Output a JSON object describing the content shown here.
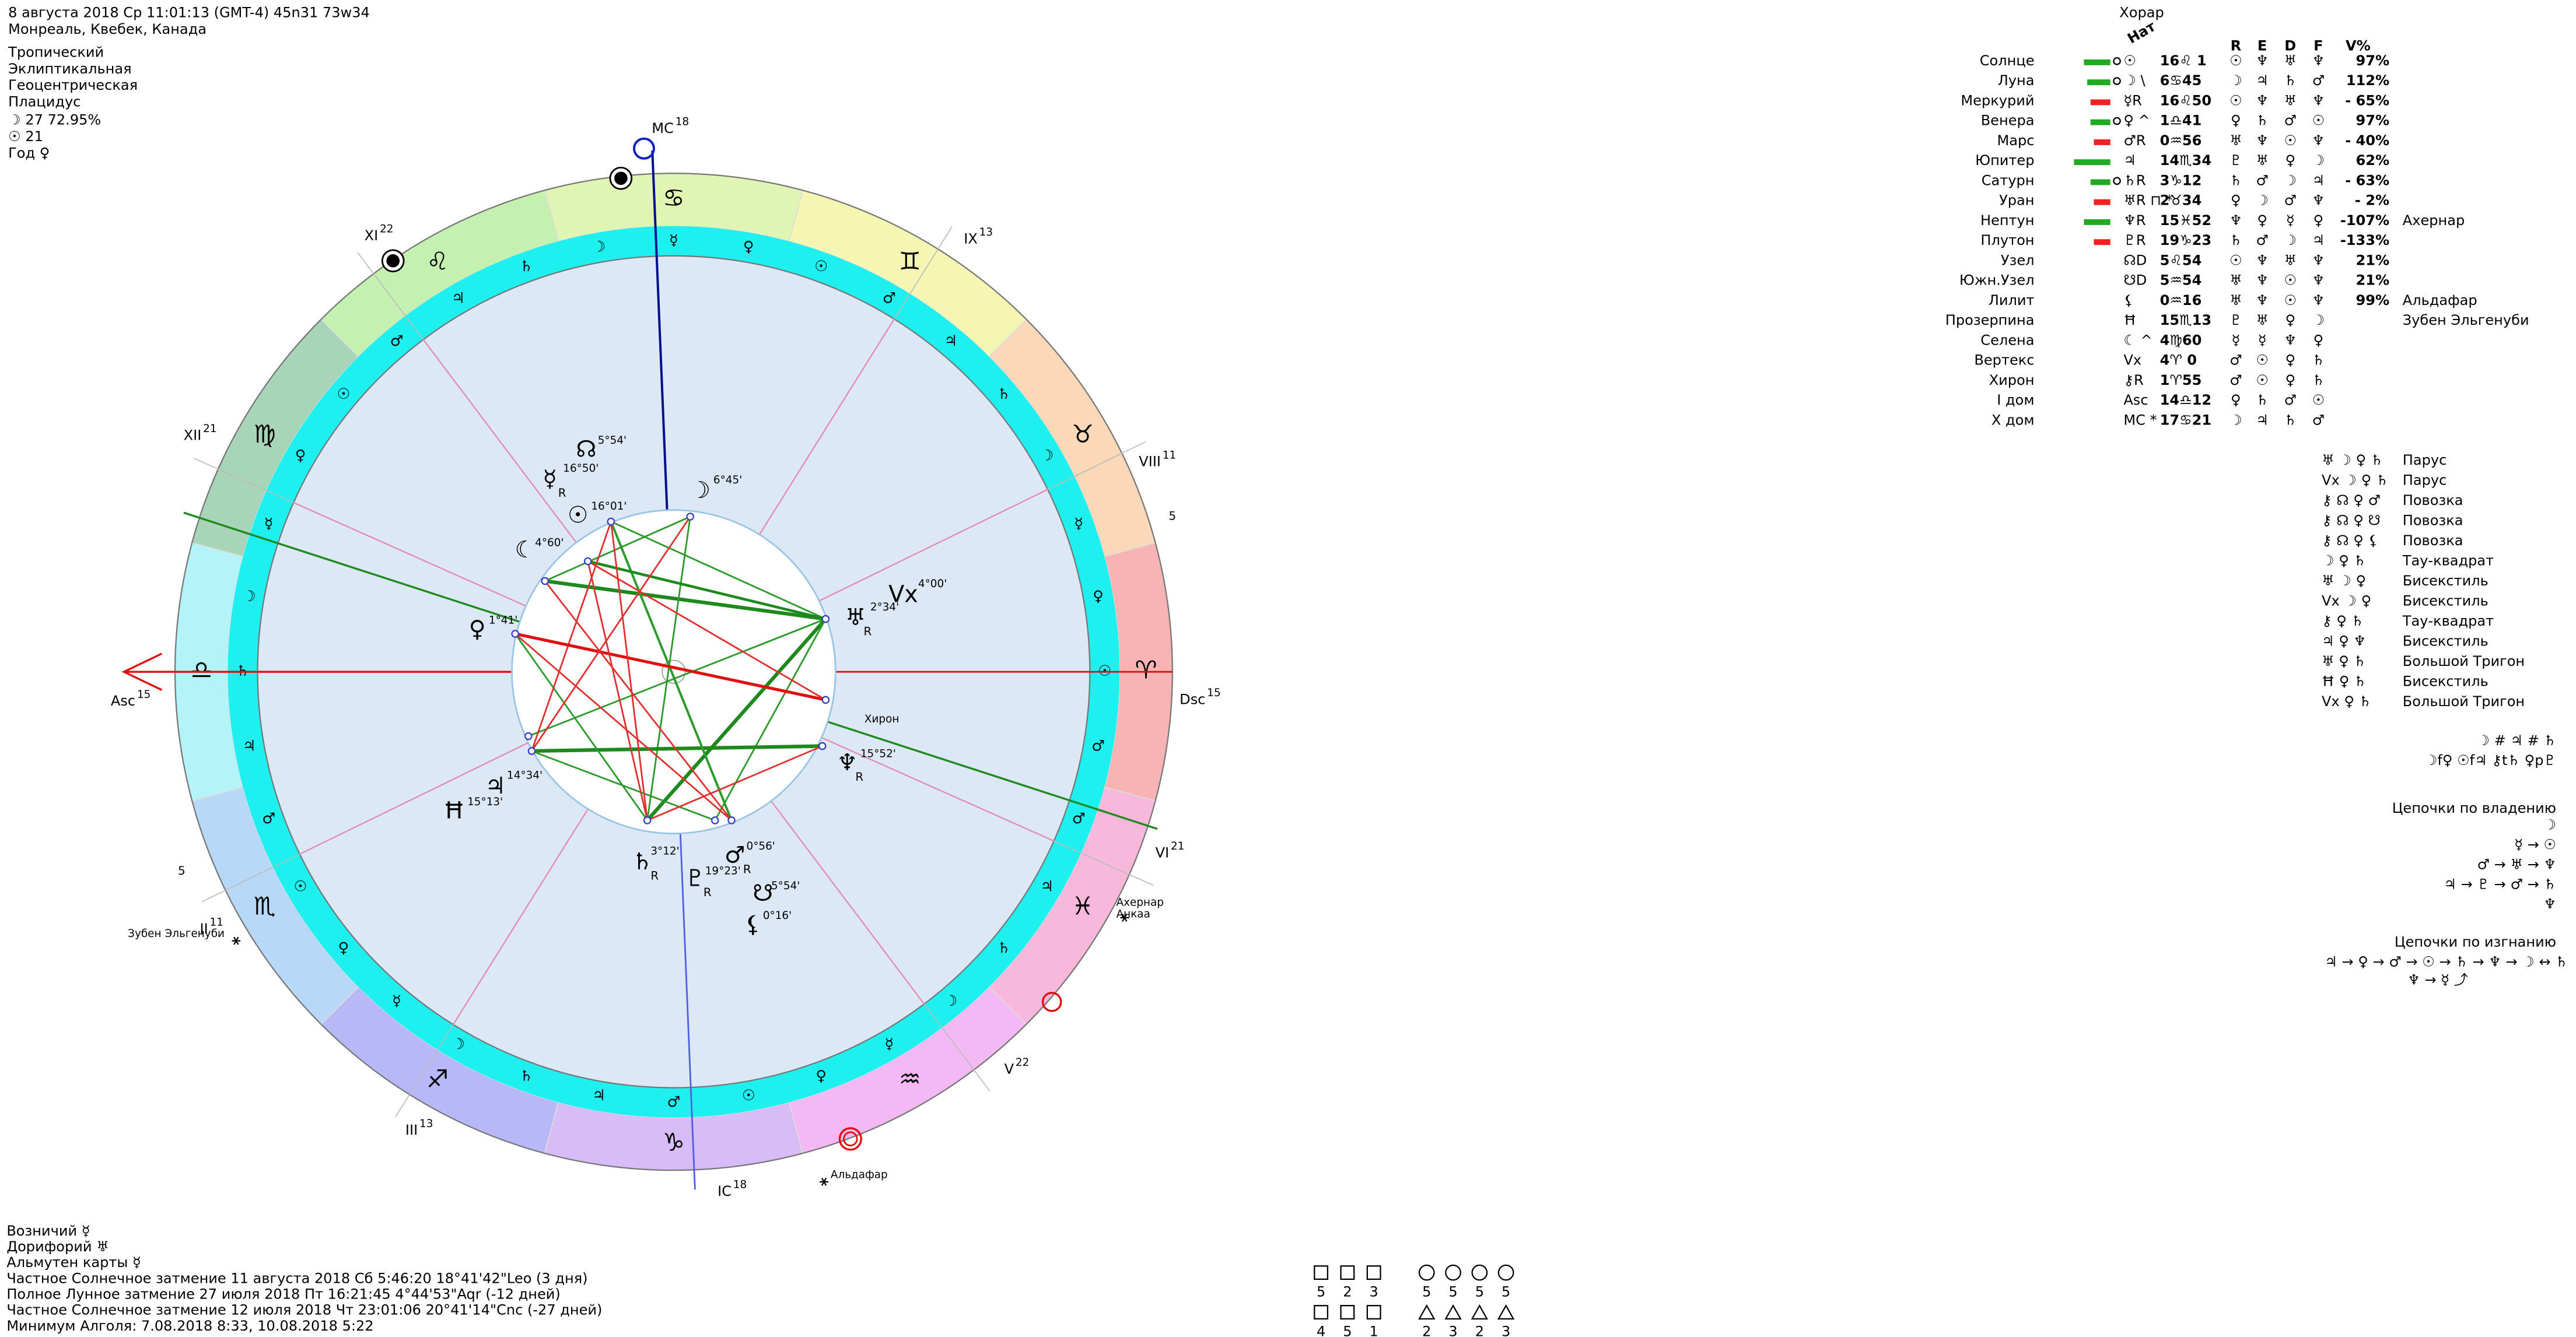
{
  "header": {
    "lines": [
      "8 августа 2018  Ср  11:01:13 (GMT-4) 45n31  73w34",
      "Монреаль, Квебек, Канада",
      "Тропический",
      "Эклиптикальная",
      "Геоцентрическая",
      "Плацидус",
      "☽  27 72.95%",
      "☉  21",
      "Год ♀"
    ]
  },
  "wheel": {
    "signs": [
      "♈",
      "♉",
      "♊",
      "♋",
      "♌",
      "♍",
      "♎",
      "♏",
      "♐",
      "♑",
      "♒",
      "♓"
    ],
    "ring_glyphs": [
      "♂",
      "☉",
      "♀",
      "☿",
      "☽",
      "♄",
      "♃",
      "♂",
      "☉",
      "♀",
      "☿",
      "☽",
      "♄",
      "♃",
      "♂",
      "☉",
      "♀",
      "☿",
      "☽",
      "♄",
      "♃",
      "♂",
      "☉",
      "♀",
      "☿",
      "☽",
      "♄",
      "♃",
      "♂",
      "☉",
      "♀",
      "☿",
      "☽",
      "♄",
      "♃",
      "♂"
    ],
    "houses": [
      {
        "label": "Asc",
        "deg": "15"
      },
      {
        "label": "II",
        "deg": "11"
      },
      {
        "label": "III",
        "deg": "13"
      },
      {
        "label": "IC",
        "deg": "18"
      },
      {
        "label": "V",
        "deg": "22"
      },
      {
        "label": "VI",
        "deg": "21"
      },
      {
        "label": "Dsc",
        "deg": "15"
      },
      {
        "label": "VIII",
        "deg": "11"
      },
      {
        "label": "IX",
        "deg": "13"
      },
      {
        "label": "MC",
        "deg": "18"
      },
      {
        "label": "XI",
        "deg": "22"
      },
      {
        "label": "XII",
        "deg": "21"
      }
    ],
    "axis_marks": [
      "5",
      "5"
    ],
    "planets": [
      {
        "glyph": "☉",
        "deg": "16°01'"
      },
      {
        "glyph": "☿",
        "sub": "R",
        "deg": "16°50'"
      },
      {
        "glyph": "☊",
        "deg": "5°54'"
      },
      {
        "glyph": "☽",
        "deg": "6°45'"
      },
      {
        "glyph": "☾",
        "deg": "4°60'"
      },
      {
        "glyph": "♀",
        "deg": "1°41'"
      },
      {
        "glyph": "Vx",
        "deg": "4°00'"
      },
      {
        "glyph": "♅",
        "sub": "R",
        "deg": "2°34'"
      },
      {
        "label": "Хирон"
      },
      {
        "glyph": "♆",
        "sub": "R",
        "deg": "15°52'"
      },
      {
        "glyph": "♃",
        "deg": "14°34'"
      },
      {
        "glyph": "Ħ",
        "deg": "15°13'"
      },
      {
        "glyph": "♄",
        "sub": "R",
        "deg": "3°12'"
      },
      {
        "glyph": "♇",
        "sub": "R",
        "deg": "19°23'"
      },
      {
        "glyph": "♂",
        "sub": "R",
        "deg": "0°56'"
      },
      {
        "glyph": "☋",
        "deg": "5°54'"
      },
      {
        "glyph": "⚸",
        "deg": "0°16'"
      }
    ],
    "stars": [
      "Ахернар",
      "Анкаа",
      "Альдафар",
      "Зубен Эльгенуби"
    ]
  },
  "table": {
    "title": "Хорар",
    "nat": "Нат",
    "columns": [
      "R",
      "E",
      "D",
      "F",
      "V%"
    ],
    "rows": [
      {
        "name": "Солнце",
        "glyph": "☉",
        "pos": "16♌ 1",
        "rulers": [
          "☉",
          "♆",
          "♅",
          "♆"
        ],
        "v": "97%"
      },
      {
        "name": "Луна",
        "glyph": "☽ \\",
        "pos": "6♋45",
        "rulers": [
          "☽",
          "♃",
          "♄",
          "♂"
        ],
        "v": "112%"
      },
      {
        "name": "Меркурий",
        "glyph": "☿R",
        "pos": "16♌50",
        "rulers": [
          "☉",
          "♆",
          "♅",
          "♆"
        ],
        "v": "- 65%"
      },
      {
        "name": "Венера",
        "glyph": "♀ ^",
        "pos": "1♎41",
        "rulers": [
          "♀",
          "♄",
          "♂",
          "☉"
        ],
        "v": "97%"
      },
      {
        "name": "Марс",
        "glyph": "♂R",
        "pos": "0♒56",
        "rulers": [
          "♅",
          "♆",
          "☉",
          "♆"
        ],
        "v": "- 40%"
      },
      {
        "name": "Юпитер",
        "glyph": "♃",
        "pos": "14♏34",
        "rulers": [
          "♇",
          "♅",
          "♀",
          "☽"
        ],
        "v": "62%"
      },
      {
        "name": "Сатурн",
        "glyph": "♄R",
        "pos": "3♑12",
        "rulers": [
          "♄",
          "♂",
          "☽",
          "♃"
        ],
        "v": "- 63%"
      },
      {
        "name": "Уран",
        "glyph": "♅R ⊓ *",
        "pos": "2♉34",
        "rulers": [
          "♀",
          "☽",
          "♂",
          "♆"
        ],
        "v": "- 2%"
      },
      {
        "name": "Нептун",
        "glyph": "♆R",
        "pos": "15♓52",
        "rulers": [
          "♆",
          "♀",
          "☿",
          "♀"
        ],
        "v": "-107%",
        "star": "Ахернар"
      },
      {
        "name": "Плутон",
        "glyph": "♇R",
        "pos": "19♑23",
        "rulers": [
          "♄",
          "♂",
          "☽",
          "♃"
        ],
        "v": "-133%"
      },
      {
        "name": "Узел",
        "glyph": "☊D",
        "pos": "5♌54",
        "rulers": [
          "☉",
          "♆",
          "♅",
          "♆"
        ],
        "v": "21%"
      },
      {
        "name": "Южн.Узел",
        "glyph": "☋D",
        "pos": "5♒54",
        "rulers": [
          "♅",
          "♆",
          "☉",
          "♆"
        ],
        "v": "21%"
      },
      {
        "name": "Лилит",
        "glyph": "⚸",
        "pos": "0♒16",
        "rulers": [
          "♅",
          "♆",
          "☉",
          "♆"
        ],
        "v": "99%",
        "star": "Альдафар"
      },
      {
        "name": "Прозерпина",
        "glyph": "Ħ",
        "pos": "15♏13",
        "rulers": [
          "♇",
          "♅",
          "♀",
          "☽"
        ],
        "star": "Зубен Эльгенуби"
      },
      {
        "name": "Селена",
        "glyph": "☾ ^",
        "pos": "4♍60",
        "rulers": [
          "☿",
          "☿",
          "♆",
          "♀"
        ]
      },
      {
        "name": "Вертекс",
        "glyph": "Vx",
        "pos": "4♈ 0",
        "rulers": [
          "♂",
          "☉",
          "♀",
          "♄"
        ]
      },
      {
        "name": "Хирон",
        "glyph": "⚷R",
        "pos": "1♈55",
        "rulers": [
          "♂",
          "☉",
          "♀",
          "♄"
        ]
      },
      {
        "name": "I дом",
        "glyph": "Asc",
        "pos": "14♎12",
        "rulers": [
          "♀",
          "♄",
          "♂",
          "☉"
        ]
      },
      {
        "name": "X дом",
        "glyph": "MC *",
        "pos": "17♋21",
        "rulers": [
          "☽",
          "♃",
          "♄",
          "♂"
        ]
      }
    ]
  },
  "configurations": [
    {
      "glyphs": "♅ ☽ ♀ ♄",
      "name": "Парус"
    },
    {
      "glyphs": "Vx ☽ ♀ ♄",
      "name": "Парус"
    },
    {
      "glyphs": "⚷ ☊ ♀ ♂",
      "name": "Повозка"
    },
    {
      "glyphs": "⚷ ☊ ♀ ☋",
      "name": "Повозка"
    },
    {
      "glyphs": "⚷ ☊ ♀ ⚸",
      "name": "Повозка"
    },
    {
      "glyphs": "☽ ♀ ♄",
      "name": "Тау-квадрат"
    },
    {
      "glyphs": "♅ ☽ ♀",
      "name": "Бисекстиль"
    },
    {
      "glyphs": "Vx ☽ ♀",
      "name": "Бисекстиль"
    },
    {
      "glyphs": "⚷ ♀ ♄",
      "name": "Тау-квадрат"
    },
    {
      "glyphs": "♃ ♀ ♆",
      "name": "Бисекстиль"
    },
    {
      "glyphs": "♅ ♀ ♄",
      "name": "Большой Тригон"
    },
    {
      "glyphs": "Ħ ♀ ♄",
      "name": "Бисекстиль"
    },
    {
      "glyphs": "Vx ♀ ♄",
      "name": "Большой Тригон"
    }
  ],
  "patterns": [
    "☽ # ♃ # ♄",
    "☽f♀ ☉f♃ ⚷t♄ ♀p♇"
  ],
  "rulership_chains": {
    "title": "Цепочки по владению",
    "lines": [
      "☽",
      "☿ → ☉",
      "♂ → ♅ → ♆",
      "♃ → ♇ → ♂ → ♄",
      "♆"
    ]
  },
  "exile_chains": {
    "title": "Цепочки по изгнанию",
    "lines": [
      "♃ → ♀ → ♂ → ☉ → ♄ → ♆ → ☽ ↔ ♄",
      "♆ → ☿ ⤴"
    ]
  },
  "footer": {
    "lines": [
      "Возничий ☿",
      "Дорифорий ♅",
      "Альмутен карты ☿",
      "Частное Солнечное затмение 11 августа 2018 Сб  5:46:20 18°41'42\"Leo (3 дня)",
      "Полное Лунное затмение 27 июля 2018 Пт 16:21:45  4°44'53\"Aqr (-12 дней)",
      "Частное Солнечное затмение 12 июля 2018 Чт 23:01:06 20°41'14\"Cnc (-27 дней)",
      "Минимум Алголя: 7.08.2018  8:33, 10.08.2018  5:22"
    ]
  },
  "counts": {
    "left": [
      [
        5,
        2,
        3
      ],
      [
        4,
        5,
        1
      ]
    ],
    "right": [
      [
        5,
        5,
        5,
        5
      ],
      [
        2,
        3,
        2,
        3
      ]
    ]
  }
}
